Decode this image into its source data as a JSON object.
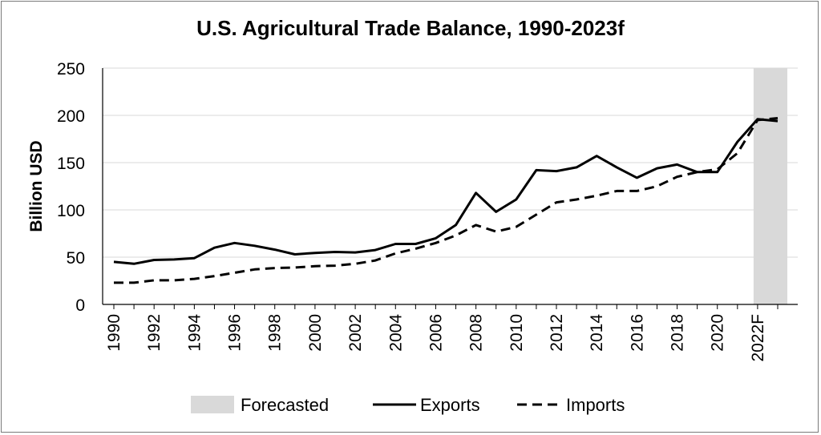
{
  "chart_data": {
    "type": "line",
    "title": "U.S. Agricultural Trade Balance, 1990-2023f",
    "ylabel": "Billion USD",
    "xlabel": "",
    "ylim": [
      0,
      250
    ],
    "y_ticks": [
      "0",
      "50",
      "100",
      "150",
      "200",
      "250"
    ],
    "x": [
      1990,
      1991,
      1992,
      1993,
      1994,
      1995,
      1996,
      1997,
      1998,
      1999,
      2000,
      2001,
      2002,
      2003,
      2004,
      2005,
      2006,
      2007,
      2008,
      2009,
      2010,
      2011,
      2012,
      2013,
      2014,
      2015,
      2016,
      2017,
      2018,
      2019,
      2020,
      2021,
      2022,
      2023
    ],
    "x_tick_labels": [
      "1990",
      "1992",
      "1994",
      "1996",
      "1998",
      "2000",
      "2002",
      "2004",
      "2006",
      "2008",
      "2010",
      "2012",
      "2014",
      "2016",
      "2018",
      "2020",
      "2022F"
    ],
    "grid": "horizontal",
    "legend_position": "bottom",
    "forecast_region": {
      "label": "Forecasted",
      "from": 2022,
      "to": 2023,
      "color": "#d9d9d9"
    },
    "series": [
      {
        "name": "Exports",
        "style": "solid",
        "color": "#000000",
        "values": [
          45,
          43,
          47,
          47.5,
          49,
          60,
          65,
          62,
          58,
          53,
          54.5,
          55.5,
          55,
          57.5,
          64,
          64,
          70,
          84,
          118,
          98,
          111,
          142,
          141,
          145,
          157,
          145,
          134,
          144,
          148,
          140,
          140,
          172,
          196,
          194
        ]
      },
      {
        "name": "Imports",
        "style": "dashed",
        "color": "#000000",
        "values": [
          23,
          23,
          25.5,
          25.5,
          27,
          30,
          33.5,
          37,
          38.5,
          39,
          40.5,
          41,
          43,
          46.5,
          54,
          59,
          65,
          73,
          84,
          77,
          82,
          95,
          108,
          111,
          115,
          120,
          120,
          125,
          135,
          140,
          143,
          160,
          195,
          197
        ]
      }
    ]
  }
}
